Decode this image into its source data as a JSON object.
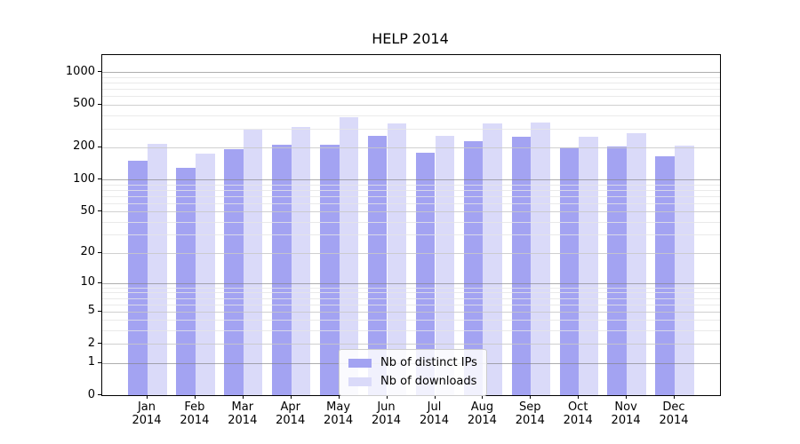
{
  "figure": {
    "title": "HELP 2014"
  },
  "chart_data": {
    "type": "bar",
    "title": "HELP 2014",
    "xlabel": "",
    "ylabel": "",
    "x_tick_labels": [
      [
        "Jan",
        "2014"
      ],
      [
        "Feb",
        "2014"
      ],
      [
        "Mar",
        "2014"
      ],
      [
        "Apr",
        "2014"
      ],
      [
        "May",
        "2014"
      ],
      [
        "Jun",
        "2014"
      ],
      [
        "Jul",
        "2014"
      ],
      [
        "Aug",
        "2014"
      ],
      [
        "Sep",
        "2014"
      ],
      [
        "Oct",
        "2014"
      ],
      [
        "Nov",
        "2014"
      ],
      [
        "Dec",
        "2014"
      ]
    ],
    "series": [
      {
        "name": "Nb of distinct IPs",
        "color": "#a3a3f2",
        "values": [
          151,
          128,
          191,
          212,
          212,
          256,
          177,
          229,
          250,
          199,
          205,
          165
        ]
      },
      {
        "name": "Nb of downloads",
        "color": "#dadaf9",
        "values": [
          215,
          173,
          293,
          308,
          380,
          337,
          255,
          332,
          341,
          253,
          273,
          209
        ]
      }
    ],
    "yscale": "log1p",
    "ylim": [
      0,
      1444
    ],
    "yticks": [
      0,
      1,
      2,
      5,
      10,
      20,
      50,
      100,
      200,
      500,
      1000
    ],
    "yticks_minor": [
      3,
      4,
      6,
      7,
      8,
      9,
      30,
      40,
      60,
      70,
      80,
      90,
      300,
      400,
      600,
      700,
      800,
      900
    ],
    "grid": true,
    "legend_position": "lower center",
    "colors": {
      "axis": "#000000",
      "grid_major": "#c8c8c8",
      "grid_minor": "#e5e5e5"
    }
  }
}
